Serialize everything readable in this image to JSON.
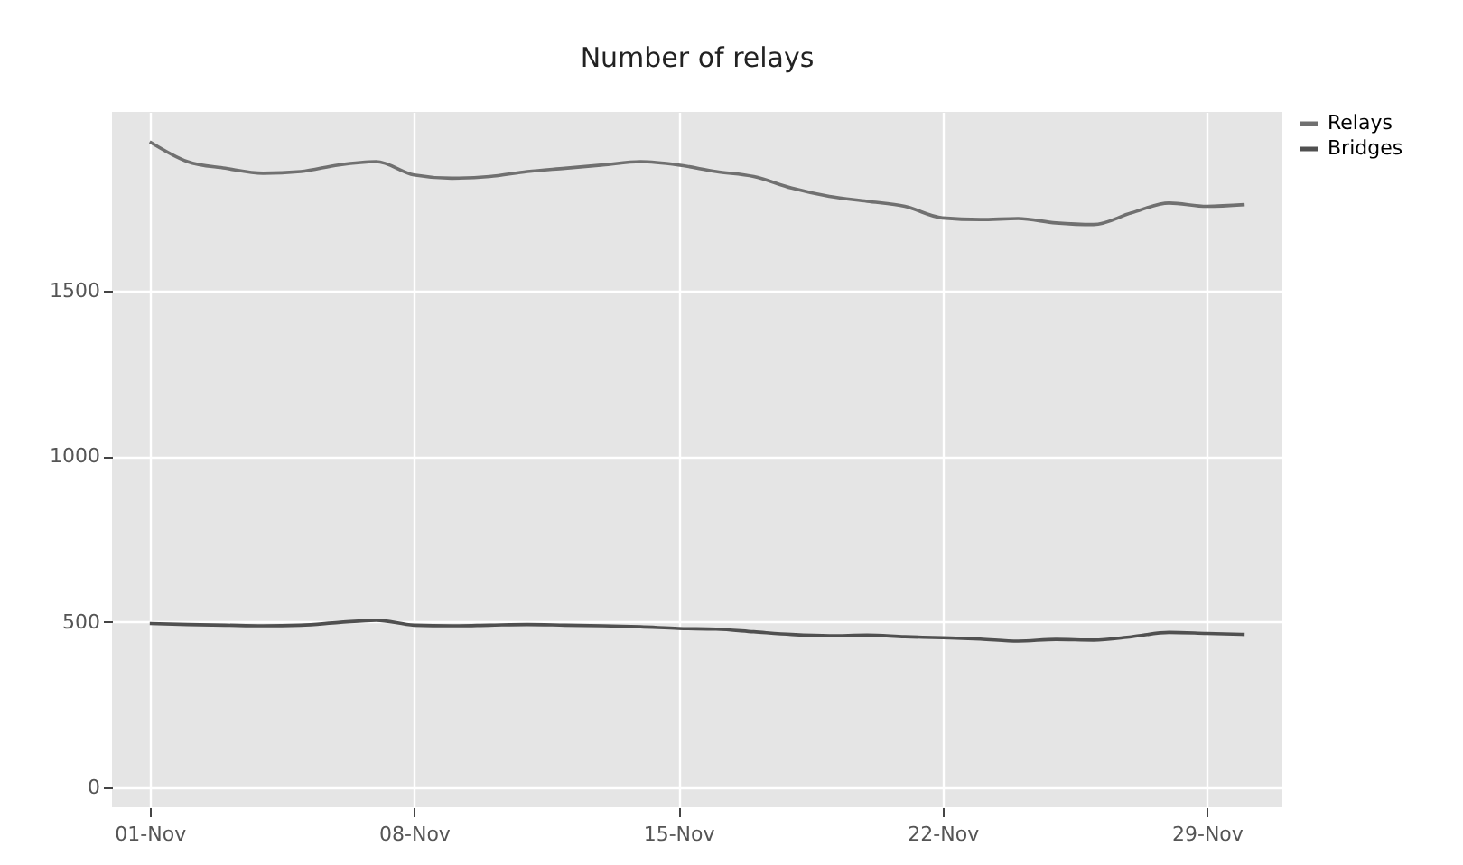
{
  "chart_data": {
    "type": "line",
    "title": "Number of relays",
    "x": [
      "--11-01",
      "--11-02",
      "--11-03",
      "--11-04",
      "--11-05",
      "--11-06",
      "--11-07",
      "--11-08",
      "--11-09",
      "--11-10",
      "--11-11",
      "--11-12",
      "--11-13",
      "--11-14",
      "--11-15",
      "--11-16",
      "--11-17",
      "--11-18",
      "--11-19",
      "--11-20",
      "--11-21",
      "--11-22",
      "--11-23",
      "--11-24",
      "--11-25",
      "--11-26",
      "--11-27",
      "--11-28",
      "--11-29",
      "--11-30"
    ],
    "series": [
      {
        "name": "Relays",
        "color": "#707070",
        "values": [
          1950,
          1890,
          1870,
          1855,
          1860,
          1880,
          1890,
          1850,
          1840,
          1845,
          1860,
          1870,
          1880,
          1890,
          1880,
          1860,
          1845,
          1810,
          1785,
          1770,
          1755,
          1720,
          1715,
          1718,
          1705,
          1700,
          1735,
          1765,
          1755,
          1760
        ]
      },
      {
        "name": "Bridges",
        "color": "#505050",
        "values": [
          495,
          492,
          490,
          488,
          490,
          498,
          505,
          490,
          488,
          490,
          492,
          490,
          488,
          485,
          480,
          478,
          470,
          462,
          458,
          460,
          455,
          452,
          448,
          442,
          447,
          445,
          455,
          468,
          465,
          462
        ]
      }
    ],
    "xlim": [
      "--10-31",
      "--12-01"
    ],
    "xticks": [
      {
        "value": "--11-01",
        "label": "01-Nov"
      },
      {
        "value": "--11-08",
        "label": "08-Nov"
      },
      {
        "value": "--11-15",
        "label": "15-Nov"
      },
      {
        "value": "--11-22",
        "label": "22-Nov"
      },
      {
        "value": "--11-29",
        "label": "29-Nov"
      }
    ],
    "ylim": [
      -60,
      2040
    ],
    "yticks": [
      0,
      500,
      1000,
      1500
    ],
    "grid": true,
    "legend": "right"
  }
}
